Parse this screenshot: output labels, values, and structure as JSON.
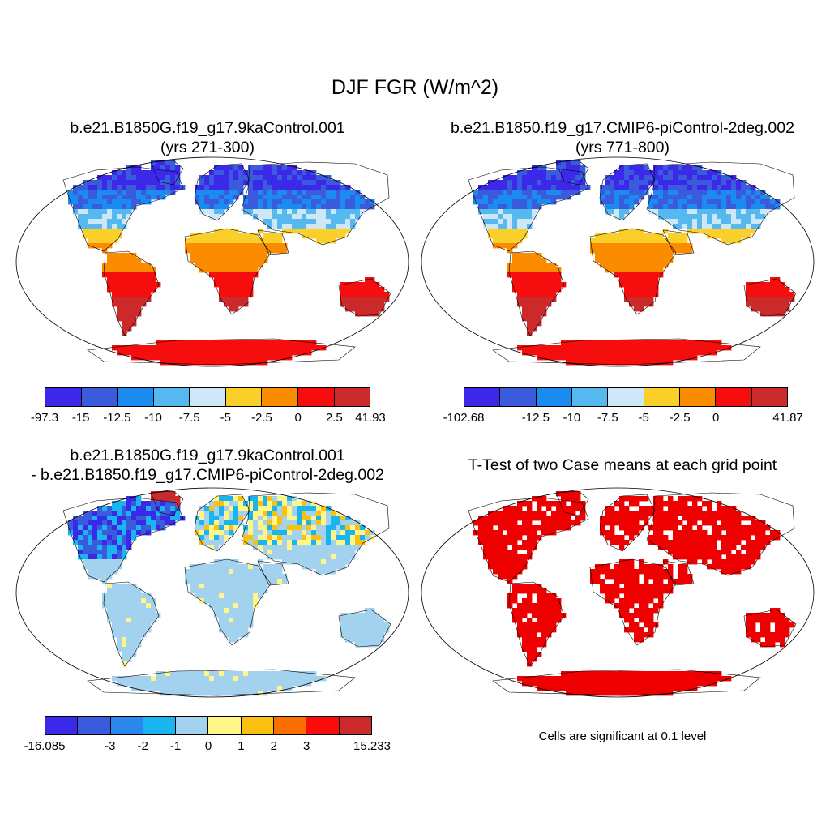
{
  "figure": {
    "title": "DJF FGR (W/m^2)"
  },
  "panels": [
    {
      "title_line1": "b.e21.B1850G.f19_g17.9kaControl.001",
      "title_line2": "(yrs 271-300)",
      "land_colors": [
        "#3c28e8",
        "#3a5bdc",
        "#1a8cf0",
        "#55b8ef",
        "#cde7f6",
        "#fbcf2a",
        "#fb8c00",
        "#f60d0d",
        "#cc2a2a"
      ],
      "colorbar": {
        "colors": [
          "#3c28e8",
          "#3a5bdc",
          "#1a8cf0",
          "#55b8ef",
          "#cde7f6",
          "#fbcf2a",
          "#fb8c00",
          "#f60d0d",
          "#cc2a2a"
        ],
        "labels": [
          "-97.3",
          "-15",
          "-12.5",
          "-10",
          "-7.5",
          "-5",
          "-2.5",
          "0",
          "2.5",
          "41.93"
        ]
      }
    },
    {
      "title_line1": "b.e21.B1850.f19_g17.CMIP6-piControl-2deg.002",
      "title_line2": "(yrs 771-800)",
      "land_colors": [
        "#3c28e8",
        "#3a5bdc",
        "#1a8cf0",
        "#55b8ef",
        "#cde7f6",
        "#fbcf2a",
        "#fb8c00",
        "#f60d0d",
        "#cc2a2a"
      ],
      "colorbar": {
        "colors": [
          "#3c28e8",
          "#3a5bdc",
          "#1a8cf0",
          "#55b8ef",
          "#cde7f6",
          "#fbcf2a",
          "#fb8c00",
          "#f60d0d",
          "#cc2a2a"
        ],
        "labels": [
          "-102.68",
          "",
          "-12.5",
          "-10",
          "-7.5",
          "-5",
          "-2.5",
          "0",
          "",
          "41.87"
        ]
      }
    },
    {
      "title_line1": "b.e21.B1850G.f19_g17.9kaControl.001",
      "title_line2": "- b.e21.B1850.f19_g17.CMIP6-piControl-2deg.002",
      "colorbar": {
        "colors": [
          "#3c28e8",
          "#3a5bdc",
          "#2a87ee",
          "#19b5f0",
          "#a3d2ef",
          "#fff68a",
          "#fbbf10",
          "#fb6f00",
          "#fa0c0c",
          "#cc2a2a"
        ],
        "labels": [
          "-16.085",
          "",
          "-3",
          "-2",
          "-1",
          "0",
          "1",
          "2",
          "3",
          "",
          "15.233"
        ]
      }
    },
    {
      "title_line1": "T-Test of two Case means at each grid point",
      "note": "Cells are significant at 0.1 level",
      "significant_color": "#ee0000"
    }
  ]
}
